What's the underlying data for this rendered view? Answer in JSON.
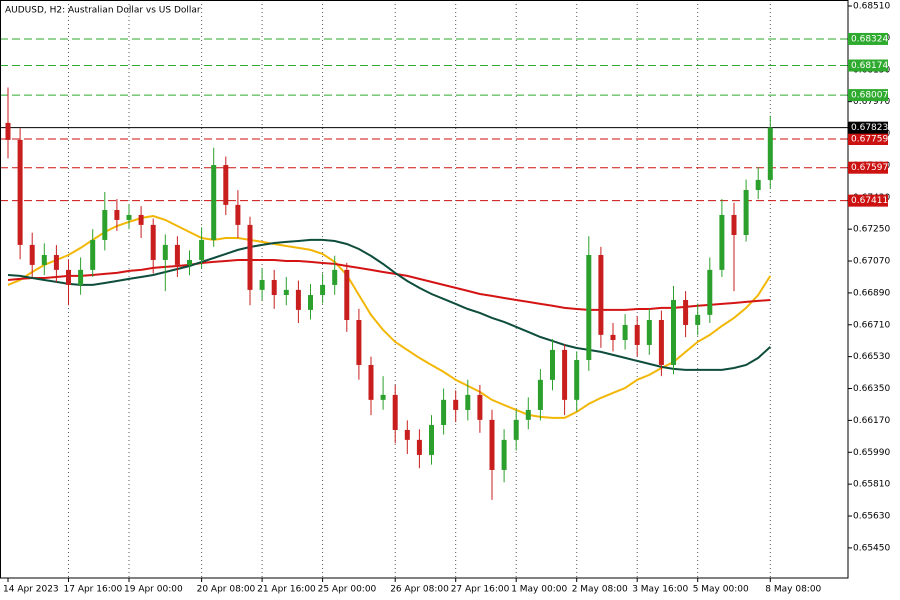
{
  "chart_data": {
    "type": "candlestick",
    "title": "AUDUSD, H2:  Australian Dollar vs US Dollar",
    "categories": [
      "14 Apr 2023",
      null,
      null,
      null,
      null,
      "17 Apr 16:00",
      null,
      null,
      null,
      null,
      "19 Apr 00:00",
      null,
      null,
      null,
      null,
      null,
      "20 Apr 08:00",
      null,
      null,
      null,
      null,
      "21 Apr 16:00",
      null,
      null,
      null,
      null,
      "25 Apr 00:00",
      null,
      null,
      null,
      null,
      null,
      "26 Apr 08:00",
      null,
      null,
      null,
      null,
      "27 Apr 16:00",
      null,
      null,
      null,
      null,
      "1 May 00:00",
      null,
      null,
      null,
      null,
      "2 May 08:00",
      null,
      null,
      null,
      null,
      "3 May 16:00",
      null,
      null,
      null,
      null,
      "5 May 00:00",
      null,
      null,
      null,
      null,
      null,
      "8 May 08:00"
    ],
    "open": [
      0.6785,
      0.67754,
      0.67161,
      0.67048,
      0.67104,
      0.6702,
      0.66935,
      0.6702,
      0.67189,
      0.67358,
      0.67302,
      0.6733,
      0.67274,
      0.67076,
      0.67161,
      0.67048,
      0.67076,
      0.67189,
      0.67612,
      0.67387,
      0.67274,
      0.66907,
      0.66963,
      0.66878,
      0.66907,
      0.66794,
      0.66878,
      0.66935,
      0.6702,
      0.66737,
      0.66483,
      0.66286,
      0.66314,
      0.66116,
      0.6606,
      0.65975,
      0.66144,
      0.66286,
      0.66229,
      0.66314,
      0.66173,
      0.6589,
      0.6606,
      0.66173,
      0.66229,
      0.66399,
      0.66568,
      0.66286,
      0.66511,
      0.67104,
      0.66653,
      0.66624,
      0.66709,
      0.66596,
      0.66737,
      0.66483,
      0.6685,
      0.66709,
      0.66766,
      0.6702,
      0.6733,
      0.67217,
      0.67471,
      0.67528
    ],
    "high": [
      0.6805,
      0.6782,
      0.6723,
      0.6717,
      0.6716,
      0.6708,
      0.6709,
      0.6725,
      0.6746,
      0.6742,
      0.6739,
      0.6738,
      0.6731,
      0.6722,
      0.6721,
      0.6713,
      0.6726,
      0.6771,
      0.6766,
      0.6747,
      0.6732,
      0.6703,
      0.6702,
      0.6698,
      0.6696,
      0.6694,
      0.67,
      0.671,
      0.6706,
      0.668,
      0.6653,
      0.6642,
      0.6637,
      0.6617,
      0.6612,
      0.662,
      0.6635,
      0.6634,
      0.664,
      0.6637,
      0.6623,
      0.6612,
      0.6623,
      0.663,
      0.6646,
      0.6663,
      0.666,
      0.6656,
      0.6721,
      0.6715,
      0.6672,
      0.6677,
      0.6676,
      0.668,
      0.6679,
      0.6693,
      0.669,
      0.6683,
      0.6709,
      0.6742,
      0.674,
      0.6753,
      0.676,
      0.6789
    ],
    "low": [
      0.6765,
      0.6708,
      0.6698,
      0.6699,
      0.6695,
      0.6682,
      0.6688,
      0.6698,
      0.6713,
      0.6724,
      0.6725,
      0.672,
      0.67,
      0.669,
      0.6698,
      0.6699,
      0.6703,
      0.6715,
      0.6733,
      0.672,
      0.6682,
      0.6685,
      0.668,
      0.6682,
      0.6672,
      0.6674,
      0.6683,
      0.6688,
      0.6667,
      0.664,
      0.662,
      0.6623,
      0.6604,
      0.6598,
      0.659,
      0.6592,
      0.6609,
      0.6616,
      0.6617,
      0.661,
      0.65721,
      0.6582,
      0.66,
      0.6612,
      0.6617,
      0.6634,
      0.662,
      0.6622,
      0.6645,
      0.6658,
      0.6656,
      0.6657,
      0.6653,
      0.6654,
      0.6642,
      0.6643,
      0.6664,
      0.6665,
      0.6672,
      0.6698,
      0.669,
      0.6718,
      0.6742,
      0.6748
    ],
    "close": [
      0.67754,
      0.67161,
      0.67048,
      0.67104,
      0.6702,
      0.66935,
      0.6702,
      0.67189,
      0.67358,
      0.67302,
      0.6733,
      0.67274,
      0.67076,
      0.67161,
      0.67048,
      0.67076,
      0.67189,
      0.67612,
      0.67387,
      0.67274,
      0.66907,
      0.66963,
      0.66878,
      0.66907,
      0.66794,
      0.66878,
      0.66935,
      0.6702,
      0.66737,
      0.66483,
      0.66286,
      0.66314,
      0.66116,
      0.6606,
      0.65975,
      0.66144,
      0.66286,
      0.66229,
      0.66314,
      0.66173,
      0.6589,
      0.6606,
      0.66173,
      0.66229,
      0.66399,
      0.66568,
      0.66286,
      0.66511,
      0.67104,
      0.66653,
      0.66624,
      0.66709,
      0.66596,
      0.66737,
      0.66483,
      0.6685,
      0.66709,
      0.66766,
      0.6702,
      0.6733,
      0.67217,
      0.67471,
      0.67528,
      0.67823
    ],
    "up_color": "#2ca02c",
    "down_color": "#c81e1e",
    "lines": [
      {
        "color": "#f2b705",
        "values": [
          0.66935,
          0.66963,
          0.67008,
          0.67048,
          0.67076,
          0.67104,
          0.67144,
          0.67189,
          0.67234,
          0.67268,
          0.67291,
          0.67313,
          0.67324,
          0.67302,
          0.67268,
          0.67234,
          0.672,
          0.67189,
          0.672,
          0.672,
          0.67189,
          0.67178,
          0.67166,
          0.67155,
          0.67144,
          0.67133,
          0.6711,
          0.67065,
          0.66991,
          0.66878,
          0.66766,
          0.66681,
          0.66613,
          0.66568,
          0.66523,
          0.66483,
          0.66444,
          0.66399,
          0.66365,
          0.66331,
          0.66286,
          0.66257,
          0.66229,
          0.66201,
          0.6619,
          0.66184,
          0.66184,
          0.66218,
          0.66263,
          0.66297,
          0.66325,
          0.66353,
          0.66399,
          0.66427,
          0.66466,
          0.665,
          0.66557,
          0.66613,
          0.66653,
          0.66703,
          0.66749,
          0.66805,
          0.66878,
          0.66986
        ]
      },
      {
        "color": "#d41414",
        "values": [
          0.66963,
          0.66969,
          0.66974,
          0.66974,
          0.6698,
          0.66986,
          0.66986,
          0.66991,
          0.66997,
          0.67003,
          0.67014,
          0.6702,
          0.67031,
          0.67037,
          0.67042,
          0.67048,
          0.67059,
          0.67065,
          0.6707,
          0.67076,
          0.67076,
          0.67076,
          0.67076,
          0.6707,
          0.6707,
          0.67065,
          0.67059,
          0.67054,
          0.67042,
          0.67031,
          0.6702,
          0.67008,
          0.66997,
          0.66986,
          0.66969,
          0.66952,
          0.66935,
          0.66918,
          0.66901,
          0.66884,
          0.66873,
          0.66861,
          0.6685,
          0.66839,
          0.66828,
          0.66817,
          0.66805,
          0.66799,
          0.66794,
          0.66794,
          0.66794,
          0.66794,
          0.66799,
          0.66799,
          0.66805,
          0.66805,
          0.66811,
          0.66817,
          0.66822,
          0.66828,
          0.66833,
          0.66839,
          0.66845,
          0.6685
        ]
      },
      {
        "color": "#0e4d3c",
        "values": [
          0.66991,
          0.66986,
          0.66974,
          0.66963,
          0.66952,
          0.66941,
          0.66935,
          0.66935,
          0.66946,
          0.66957,
          0.66969,
          0.6698,
          0.66991,
          0.67008,
          0.67025,
          0.67042,
          0.67065,
          0.67087,
          0.6711,
          0.67133,
          0.67149,
          0.67161,
          0.67172,
          0.67178,
          0.67183,
          0.67189,
          0.67189,
          0.67183,
          0.67166,
          0.67138,
          0.67099,
          0.67053,
          0.67003,
          0.66957,
          0.66918,
          0.66884,
          0.66856,
          0.66828,
          0.66799,
          0.66777,
          0.66749,
          0.66726,
          0.66698,
          0.6667,
          0.66641,
          0.66619,
          0.66596,
          0.66579,
          0.66568,
          0.66557,
          0.6654,
          0.66523,
          0.66506,
          0.66489,
          0.66472,
          0.66461,
          0.66455,
          0.66455,
          0.66455,
          0.66455,
          0.66466,
          0.66483,
          0.66523,
          0.66585
        ]
      }
    ],
    "upper_levels": [
      0.68324,
      0.68174,
      0.68007
    ],
    "upper_color": "#2eaa2e",
    "lower_levels": [
      0.67759,
      0.67597,
      0.67411
    ],
    "lower_color": "#cc1111",
    "last_price": 0.67823,
    "last_price_color": "#000000",
    "ylim": [
      0.6528,
      0.68544
    ],
    "yticks": [
      {
        "value": 0.6851,
        "label": "0.68510"
      },
      {
        "value": 0.6833,
        "label": "0.68330"
      },
      {
        "value": 0.6815,
        "label": "0.68150"
      },
      {
        "value": 0.6797,
        "label": "0.67970"
      },
      {
        "value": 0.6779,
        "label": "0.67790"
      },
      {
        "value": 0.6761,
        "label": "0.67610"
      },
      {
        "value": 0.6743,
        "label": "0.67430"
      },
      {
        "value": 0.6725,
        "label": "0.67250"
      },
      {
        "value": 0.6707,
        "label": "0.67070"
      },
      {
        "value": 0.6689,
        "label": "0.66890"
      },
      {
        "value": 0.6671,
        "label": "0.66710"
      },
      {
        "value": 0.6653,
        "label": "0.66530"
      },
      {
        "value": 0.6635,
        "label": "0.66350"
      },
      {
        "value": 0.6617,
        "label": "0.66170"
      },
      {
        "value": 0.6599,
        "label": "0.65990"
      },
      {
        "value": 0.6581,
        "label": "0.65810"
      },
      {
        "value": 0.6563,
        "label": "0.65630"
      },
      {
        "value": 0.6545,
        "label": "0.65450"
      }
    ],
    "grid": true
  }
}
